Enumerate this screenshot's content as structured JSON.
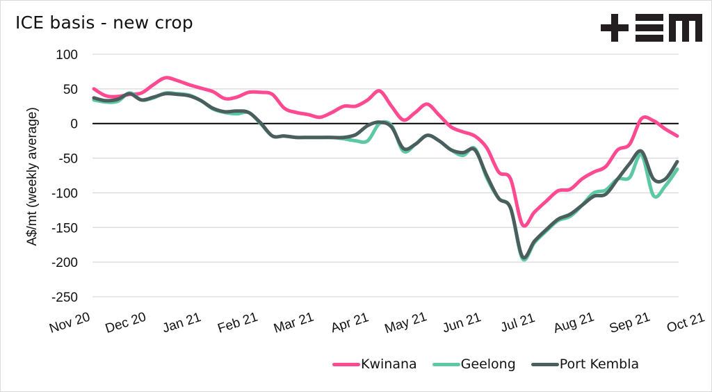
{
  "chart_data": {
    "type": "line",
    "title": "ICE basis - new crop",
    "brand": "+EM",
    "xlabel": "",
    "ylabel": "A$/mt (weekly average)",
    "ylim": [
      -250,
      100
    ],
    "yticks": [
      100,
      50,
      0,
      -50,
      -100,
      -150,
      -200,
      -250
    ],
    "ytick_labels": [
      "100",
      "50",
      "0",
      "-50",
      "-100",
      "-150",
      "-200",
      "-250"
    ],
    "x_tick_labels": [
      "Nov 20",
      "Dec 20",
      "Jan 21",
      "Feb 21",
      "Mar 21",
      "Apr 21",
      "May 21",
      "Jun 21",
      "Jul 21",
      "Aug 21",
      "Sep 21",
      "Oct 21"
    ],
    "grid": true,
    "zero_line": true,
    "legend_position": "bottom-right",
    "n_weeks": 50,
    "series": [
      {
        "name": "Kwinana",
        "color": "#ff4a91",
        "values": [
          50,
          40,
          39,
          42,
          44,
          56,
          66,
          62,
          56,
          51,
          46,
          36,
          38,
          45,
          45,
          42,
          22,
          16,
          13,
          9,
          16,
          25,
          25,
          34,
          47,
          25,
          5,
          16,
          28,
          12,
          -5,
          -12,
          -18,
          -35,
          -70,
          -80,
          -146,
          -128,
          -112,
          -97,
          -95,
          -80,
          -70,
          -62,
          -38,
          -30,
          7,
          4,
          -8,
          -18
        ]
      },
      {
        "name": "Geelong",
        "color": "#5dc8a4",
        "values": [
          34,
          31,
          32,
          44,
          34,
          37,
          44,
          43,
          41,
          33,
          21,
          16,
          14,
          16,
          0,
          -18,
          -18,
          -20,
          -20,
          -20,
          -20,
          -22,
          -25,
          -25,
          0,
          -3,
          -40,
          -30,
          -17,
          -25,
          -38,
          -46,
          -36,
          -78,
          -108,
          -122,
          -195,
          -172,
          -155,
          -140,
          -134,
          -118,
          -100,
          -96,
          -80,
          -78,
          -45,
          -104,
          -90,
          -66
        ]
      },
      {
        "name": "Port Kembla",
        "color": "#4b5e5e",
        "values": [
          37,
          33,
          35,
          43,
          34,
          38,
          43,
          42,
          40,
          33,
          22,
          17,
          18,
          16,
          1,
          -18,
          -18,
          -20,
          -20,
          -20,
          -20,
          -20,
          -16,
          -3,
          2,
          -5,
          -36,
          -30,
          -17,
          -25,
          -38,
          -42,
          -38,
          -75,
          -108,
          -122,
          -192,
          -170,
          -153,
          -138,
          -131,
          -118,
          -105,
          -102,
          -80,
          -58,
          -40,
          -80,
          -80,
          -55
        ]
      }
    ]
  }
}
